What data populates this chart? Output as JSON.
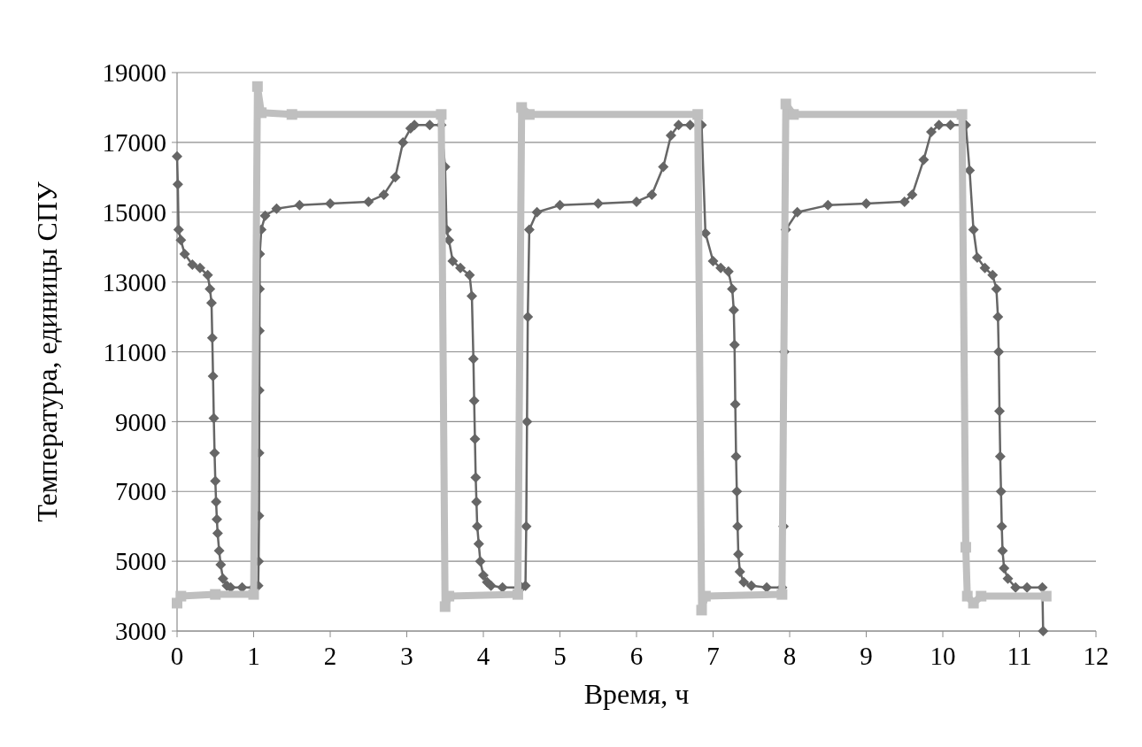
{
  "chart_data": {
    "type": "line",
    "xlabel": "Время, ч",
    "ylabel": "Температура, единицы СПУ",
    "xlim": [
      0,
      12
    ],
    "ylim": [
      3000,
      19000
    ],
    "xticks": [
      0,
      1,
      2,
      3,
      4,
      5,
      6,
      7,
      8,
      9,
      10,
      11,
      12
    ],
    "yticks": [
      3000,
      5000,
      7000,
      9000,
      11000,
      13000,
      15000,
      17000,
      19000
    ],
    "grid": "y",
    "series": [
      {
        "color": "#666666",
        "marker": "diamond",
        "x": [
          0,
          0.01,
          0.02,
          0.05,
          0.1,
          0.2,
          0.3,
          0.4,
          0.43,
          0.45,
          0.46,
          0.47,
          0.48,
          0.49,
          0.5,
          0.51,
          0.52,
          0.53,
          0.55,
          0.57,
          0.6,
          0.65,
          0.7,
          0.85,
          1.0,
          1.06,
          1.065,
          1.07,
          1.072,
          1.074,
          1.076,
          1.078,
          1.08,
          1.1,
          1.15,
          1.3,
          1.6,
          2.0,
          2.5,
          2.7,
          2.85,
          2.95,
          3.05,
          3.1,
          3.3,
          3.45,
          3.5,
          3.52,
          3.55,
          3.6,
          3.7,
          3.82,
          3.85,
          3.87,
          3.88,
          3.89,
          3.9,
          3.91,
          3.92,
          3.94,
          3.96,
          4.0,
          4.05,
          4.1,
          4.25,
          4.5,
          4.55,
          4.56,
          4.57,
          4.58,
          4.6,
          4.7,
          5.0,
          5.5,
          6.0,
          6.2,
          6.35,
          6.45,
          6.55,
          6.7,
          6.85,
          6.9,
          7.0,
          7.1,
          7.2,
          7.25,
          7.27,
          7.28,
          7.29,
          7.3,
          7.31,
          7.32,
          7.33,
          7.35,
          7.4,
          7.5,
          7.7,
          7.9,
          7.92,
          7.93,
          7.95,
          8.1,
          8.5,
          9.0,
          9.5,
          9.6,
          9.75,
          9.85,
          9.95,
          10.1,
          10.3,
          10.35,
          10.4,
          10.45,
          10.55,
          10.65,
          10.7,
          10.72,
          10.73,
          10.74,
          10.75,
          10.76,
          10.77,
          10.78,
          10.8,
          10.85,
          10.95,
          11.1,
          11.3,
          11.31
        ],
        "values": [
          16600,
          15800,
          14500,
          14200,
          13800,
          13500,
          13400,
          13200,
          12800,
          12400,
          11400,
          10300,
          9100,
          8100,
          7300,
          6700,
          6200,
          5800,
          5300,
          4900,
          4500,
          4300,
          4250,
          4250,
          4250,
          4300,
          5000,
          6300,
          8100,
          9900,
          11600,
          12800,
          13800,
          14500,
          14900,
          15100,
          15200,
          15250,
          15300,
          15500,
          16000,
          17000,
          17400,
          17500,
          17500,
          17500,
          16300,
          14500,
          14200,
          13600,
          13400,
          13200,
          12600,
          10800,
          9600,
          8500,
          7400,
          6700,
          6000,
          5500,
          5000,
          4600,
          4400,
          4300,
          4250,
          4250,
          4300,
          6000,
          9000,
          12000,
          14500,
          15000,
          15200,
          15250,
          15300,
          15500,
          16300,
          17200,
          17500,
          17500,
          17500,
          14400,
          13600,
          13400,
          13300,
          12800,
          12200,
          11200,
          9500,
          8000,
          7000,
          6000,
          5200,
          4700,
          4400,
          4300,
          4250,
          4250,
          6000,
          11000,
          14500,
          15000,
          15200,
          15250,
          15300,
          15500,
          16500,
          17300,
          17500,
          17500,
          17500,
          16200,
          14500,
          13700,
          13400,
          13200,
          12800,
          12000,
          11000,
          9300,
          8000,
          7000,
          6000,
          5300,
          4800,
          4500,
          4250,
          4250,
          4250,
          3000
        ]
      },
      {
        "color": "#bfbfbf",
        "marker": "square",
        "x": [
          0,
          0.05,
          0.5,
          1.0,
          1.05,
          1.1,
          1.5,
          3.45,
          3.5,
          3.55,
          4.45,
          4.5,
          4.6,
          6.8,
          6.85,
          6.9,
          7.9,
          7.95,
          8.05,
          10.25,
          10.3,
          10.32,
          10.4,
          10.5,
          11.35
        ],
        "values": [
          3800,
          4000,
          4050,
          4050,
          18600,
          17850,
          17800,
          17800,
          3700,
          4000,
          4050,
          18000,
          17800,
          17800,
          3600,
          4000,
          4050,
          18100,
          17800,
          17800,
          5400,
          4000,
          3800,
          4000,
          4000
        ]
      }
    ]
  }
}
